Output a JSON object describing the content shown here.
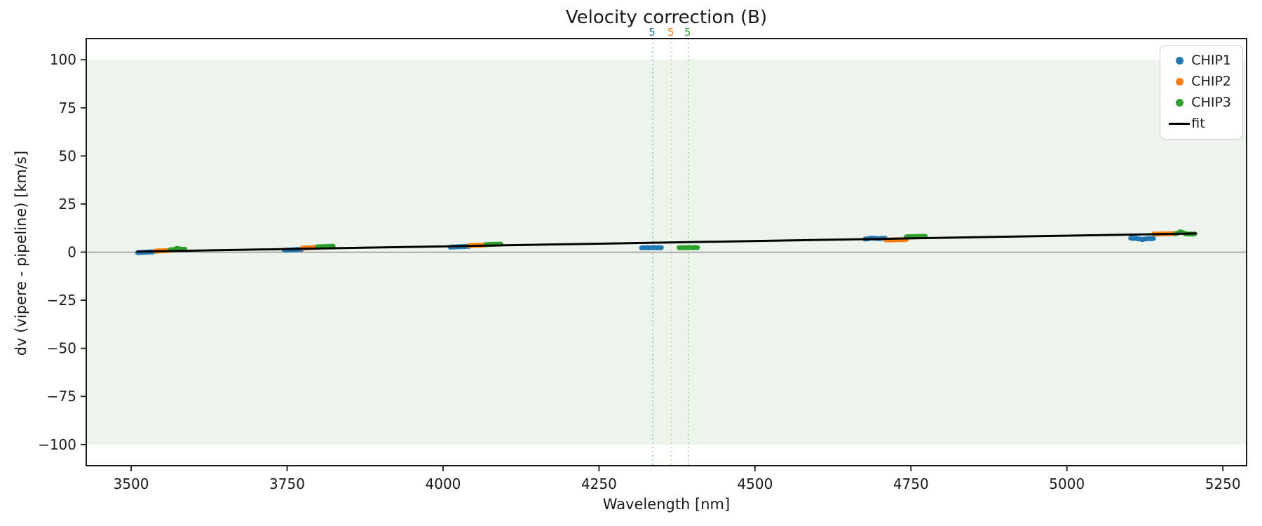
{
  "figure": {
    "title": "Velocity correction (B)",
    "xlabel": "Wavelength [nm]",
    "ylabel": "dv (vipere - pipeline) [km/s]"
  },
  "legend": {
    "position": "upper right",
    "items": [
      {
        "label": "CHIP1",
        "color": "#1f77b4",
        "marker": "dot"
      },
      {
        "label": "CHIP2",
        "color": "#ff7f0e",
        "marker": "dot"
      },
      {
        "label": "CHIP3",
        "color": "#2ca02c",
        "marker": "dot"
      },
      {
        "label": "fit",
        "color": "#000000",
        "marker": "line"
      }
    ]
  },
  "chart_data": {
    "type": "scatter",
    "title": "Velocity correction (B)",
    "xlabel": "Wavelength [nm]",
    "ylabel": "dv (vipere - pipeline) [km/s]",
    "xlim": [
      3428,
      5288
    ],
    "ylim": [
      -111,
      111
    ],
    "xticks": [
      3500,
      3750,
      4000,
      4250,
      4500,
      4750,
      5000,
      5250
    ],
    "yticks": [
      100,
      75,
      50,
      25,
      0,
      -25,
      -50,
      -75,
      -100
    ],
    "grid": false,
    "band": {
      "ymin": -100,
      "ymax": 100,
      "color": "#ecf4ec"
    },
    "zero_line": {
      "y": 0,
      "color": "#808080"
    },
    "series": [
      {
        "name": "CHIP1",
        "color": "#1f77b4",
        "segments": [
          {
            "x0": 3510,
            "x1": 3537,
            "dv0": -0.3,
            "dv1": 0.2
          },
          {
            "x0": 3745,
            "x1": 3773,
            "dv0": 1.0,
            "dv1": 1.4
          },
          {
            "x0": 4011,
            "x1": 4041,
            "dv0": 2.6,
            "dv1": 3.0
          },
          {
            "x0": 4318,
            "x1": 4350,
            "dv0": 2.3,
            "dv1": 2.3
          },
          {
            "x0": 4676,
            "x1": 4709,
            "dv0": 6.8,
            "dv1": 7.2,
            "bump": {
              "center": 0.35,
              "amp": 0.35
            }
          },
          {
            "x0": 5102,
            "x1": 5139,
            "dv0": 7.2,
            "dv1": 7.0,
            "bump": {
              "center": 0.5,
              "amp": -0.55
            }
          }
        ]
      },
      {
        "name": "CHIP2",
        "color": "#ff7f0e",
        "segments": [
          {
            "x0": 3538,
            "x1": 3562,
            "dv0": 0.5,
            "dv1": 0.9
          },
          {
            "x0": 3773,
            "x1": 3799,
            "dv0": 2.1,
            "dv1": 2.5
          },
          {
            "x0": 4041,
            "x1": 4068,
            "dv0": 3.4,
            "dv1": 3.7
          },
          {
            "x0": 4709,
            "x1": 4743,
            "dv0": 6.3,
            "dv1": 6.5
          },
          {
            "x0": 5139,
            "x1": 5175,
            "dv0": 9.4,
            "dv1": 9.6
          }
        ]
      },
      {
        "name": "CHIP3",
        "color": "#2ca02c",
        "segments": [
          {
            "x0": 3562,
            "x1": 3586,
            "dv0": 1.2,
            "dv1": 1.5,
            "bump": {
              "center": 0.5,
              "amp": 0.6
            }
          },
          {
            "x0": 3798,
            "x1": 3824,
            "dv0": 2.7,
            "dv1": 3.1
          },
          {
            "x0": 4068,
            "x1": 4093,
            "dv0": 3.9,
            "dv1": 4.2
          },
          {
            "x0": 4378,
            "x1": 4408,
            "dv0": 2.3,
            "dv1": 2.4
          },
          {
            "x0": 4742,
            "x1": 4773,
            "dv0": 8.0,
            "dv1": 8.3
          },
          {
            "x0": 5173,
            "x1": 5205,
            "dv0": 9.5,
            "dv1": 9.4,
            "bump": {
              "center": 0.3,
              "amp": 1.1
            }
          }
        ]
      }
    ],
    "fit": {
      "name": "fit",
      "color": "#000000",
      "x": [
        3510,
        5207
      ],
      "y": [
        0.28,
        9.7
      ]
    },
    "vlines": [
      {
        "x": 4336,
        "label": "5",
        "color": "#1f77b4"
      },
      {
        "x": 4366,
        "label": "5",
        "color": "#ff7f0e"
      },
      {
        "x": 4393,
        "label": "5",
        "color": "#2ca02c"
      }
    ]
  }
}
